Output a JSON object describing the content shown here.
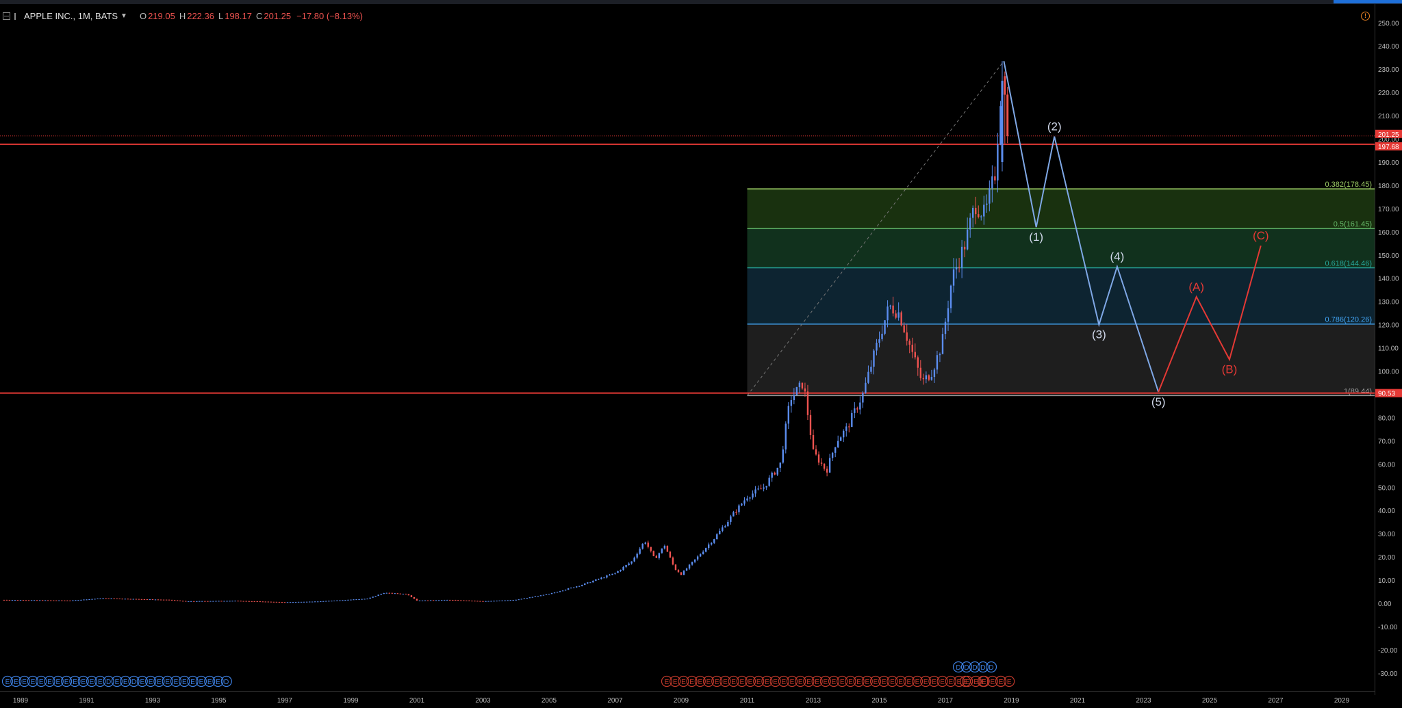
{
  "legend": {
    "title": "APPLE INC., 1M, BATS",
    "open_label": "O",
    "open": "219.05",
    "high_label": "H",
    "high": "222.36",
    "low_label": "L",
    "low": "198.17",
    "close_label": "C",
    "close": "201.25",
    "change": "−17.80 (−8.13%)"
  },
  "colors": {
    "up": "#5b8def",
    "down": "#ef5350",
    "wave_blue": "#7fa8e6",
    "wave_red": "#e53935",
    "hline": "#e53935"
  },
  "chart_data": {
    "type": "candlestick",
    "interval": "1M",
    "symbol": "APPLE INC., BATS",
    "ohlc_last": {
      "open": 219.05,
      "high": 222.36,
      "low": 198.17,
      "close": 201.25,
      "change": -17.8,
      "change_pct": -8.13
    },
    "y_axis": {
      "range": [
        -35,
        255
      ],
      "ticks": [
        "250.00",
        "240.00",
        "230.00",
        "220.00",
        "210.00",
        "200.00",
        "190.00",
        "180.00",
        "170.00",
        "160.00",
        "150.00",
        "140.00",
        "130.00",
        "120.00",
        "110.00",
        "100.00",
        "90.00",
        "80.00",
        "70.00",
        "60.00",
        "50.00",
        "40.00",
        "30.00",
        "20.00",
        "10.00",
        "0.00",
        "-10.00",
        "-20.00",
        "-30.00"
      ]
    },
    "x_axis": {
      "range": [
        1988.4,
        2029.8
      ],
      "ticks": [
        "1989",
        "1991",
        "1993",
        "1995",
        "1997",
        "1999",
        "2001",
        "2003",
        "2005",
        "2007",
        "2009",
        "2011",
        "2013",
        "2015",
        "2017",
        "2019",
        "2021",
        "2023",
        "2025",
        "2027",
        "2029"
      ]
    },
    "price_path": [
      [
        1988.5,
        1.5
      ],
      [
        1990.5,
        1.2
      ],
      [
        1991.5,
        2.2
      ],
      [
        1993.5,
        1.5
      ],
      [
        1994.0,
        0.9
      ],
      [
        1995.5,
        1.1
      ],
      [
        1997.0,
        0.5
      ],
      [
        1998.0,
        0.8
      ],
      [
        1999.5,
        2.0
      ],
      [
        2000.0,
        4.5
      ],
      [
        2000.7,
        4.0
      ],
      [
        2001.0,
        1.2
      ],
      [
        2002.0,
        1.5
      ],
      [
        2003.0,
        0.9
      ],
      [
        2004.0,
        1.5
      ],
      [
        2005.0,
        4.0
      ],
      [
        2006.0,
        8.0
      ],
      [
        2006.5,
        10.5
      ],
      [
        2007.0,
        13.0
      ],
      [
        2007.5,
        18.0
      ],
      [
        2007.9,
        27.0
      ],
      [
        2008.2,
        19.0
      ],
      [
        2008.5,
        25.0
      ],
      [
        2008.8,
        15.0
      ],
      [
        2009.0,
        12.5
      ],
      [
        2009.5,
        20.0
      ],
      [
        2010.0,
        28.0
      ],
      [
        2010.5,
        37.0
      ],
      [
        2011.0,
        46.0
      ],
      [
        2011.5,
        50.0
      ],
      [
        2012.0,
        60.0
      ],
      [
        2012.3,
        88.0
      ],
      [
        2012.7,
        95.0
      ],
      [
        2013.0,
        65.0
      ],
      [
        2013.4,
        57.0
      ],
      [
        2013.7,
        70.0
      ],
      [
        2014.0,
        75.0
      ],
      [
        2014.5,
        90.0
      ],
      [
        2014.9,
        110.0
      ],
      [
        2015.3,
        128.0
      ],
      [
        2015.6,
        125.0
      ],
      [
        2015.9,
        112.0
      ],
      [
        2016.3,
        95.0
      ],
      [
        2016.6,
        100.0
      ],
      [
        2016.9,
        112.0
      ],
      [
        2017.2,
        140.0
      ],
      [
        2017.6,
        155.0
      ],
      [
        2017.9,
        172.0
      ],
      [
        2018.2,
        167.0
      ],
      [
        2018.5,
        185.0
      ],
      [
        2018.7,
        225.0
      ],
      [
        2018.85,
        218.0
      ],
      [
        2018.92,
        201.25
      ]
    ],
    "fibonacci_retracement": {
      "from": {
        "date": 2011.0,
        "price": 89.44
      },
      "to": {
        "date": 2018.77,
        "price": 233.5
      },
      "levels": [
        {
          "ratio": "0.382",
          "price": 178.45,
          "label": "0.382(178.45)",
          "color": "#9ccc65"
        },
        {
          "ratio": "0.5",
          "price": 161.45,
          "label": "0.5(161.45)",
          "color": "#66bb6a"
        },
        {
          "ratio": "0.618",
          "price": 144.46,
          "label": "0.618(144.46)",
          "color": "#26a69a"
        },
        {
          "ratio": "0.786",
          "price": 120.26,
          "label": "0.786(120.26)",
          "color": "#42a5f5"
        },
        {
          "ratio": "1",
          "price": 89.44,
          "label": "1(89.44)",
          "color": "#9e9e9e"
        }
      ]
    },
    "horizontal_lines": [
      {
        "price": 197.68,
        "label": "197.68",
        "color": "#e53935"
      },
      {
        "price": 90.53,
        "label": "90.53",
        "color": "#e53935"
      }
    ],
    "last_price": {
      "price": 201.25,
      "label": "201.25"
    },
    "elliott_wave_impulse": [
      {
        "date": 2018.77,
        "price": 233.5,
        "label": ""
      },
      {
        "date": 2019.75,
        "price": 162.0,
        "label": "(1)"
      },
      {
        "date": 2020.3,
        "price": 201.0,
        "label": "(2)"
      },
      {
        "date": 2021.65,
        "price": 120.0,
        "label": "(3)"
      },
      {
        "date": 2022.2,
        "price": 145.0,
        "label": "(4)"
      },
      {
        "date": 2023.45,
        "price": 91.0,
        "label": "(5)"
      }
    ],
    "elliott_wave_correction": [
      {
        "date": 2023.45,
        "price": 91.0,
        "label": ""
      },
      {
        "date": 2024.6,
        "price": 132.0,
        "label": "(A)"
      },
      {
        "date": 2025.6,
        "price": 105.0,
        "label": "(B)"
      },
      {
        "date": 2026.55,
        "price": 154.0,
        "label": "(C)"
      }
    ],
    "event_markers": {
      "dividend_row_1": [
        "E",
        "E",
        "E",
        "E",
        "E",
        "E",
        "E",
        "E",
        "E",
        "E",
        "E",
        "E",
        "D",
        "E",
        "E",
        "D",
        "E",
        "E",
        "E",
        "E",
        "E",
        "E",
        "E",
        "E",
        "E",
        "E",
        "D"
      ],
      "earnings_row_red": [
        "E",
        "E",
        "E",
        "E",
        "E",
        "E",
        "E",
        "E",
        "E",
        "E",
        "E",
        "E",
        "E",
        "E",
        "E",
        "E",
        "E",
        "E",
        "E",
        "E",
        "E",
        "E",
        "E",
        "E",
        "E",
        "E",
        "E",
        "E",
        "E",
        "E",
        "E",
        "E",
        "E",
        "E",
        "E",
        "E",
        "E",
        "E",
        "E",
        "E",
        "E",
        "E"
      ],
      "earnings_row_red_tail": [
        "E",
        "E",
        "E"
      ],
      "dividend_row_2": [
        "D",
        "D",
        "D",
        "D",
        "D"
      ]
    }
  }
}
